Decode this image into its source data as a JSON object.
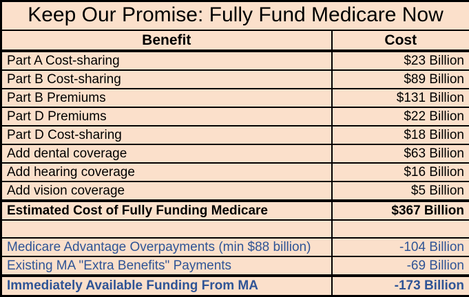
{
  "colors": {
    "table_background": "#fbe0cb",
    "border": "#000000",
    "black_text": "#000000",
    "blue_text": "#2f5496"
  },
  "chart_data": {
    "type": "table",
    "title": "Keep Our Promise: Fully Fund Medicare Now",
    "columns": {
      "benefit": "Benefit",
      "cost": "Cost"
    },
    "benefit_rows": [
      {
        "benefit": "Part A Cost-sharing",
        "cost": "$23 Billion"
      },
      {
        "benefit": "Part B Cost-sharing",
        "cost": "$89 Billion"
      },
      {
        "benefit": "Part B Premiums",
        "cost": "$131 Billion"
      },
      {
        "benefit": "Part D Premiums",
        "cost": "$22 Billion"
      },
      {
        "benefit": "Part D Cost-sharing",
        "cost": "$18 Billion"
      },
      {
        "benefit": "Add dental coverage",
        "cost": "$63 Billion"
      },
      {
        "benefit": "Add hearing coverage",
        "cost": "$16 Billion"
      },
      {
        "benefit": "Add vision coverage",
        "cost": "$5 Billion"
      }
    ],
    "summary_row": {
      "benefit": "Estimated Cost of Fully Funding Medicare",
      "cost": "$367 Billion"
    },
    "offset_rows": [
      {
        "benefit": "Medicare Advantage Overpayments (min $88 billion)",
        "cost": "-104 Billion"
      },
      {
        "benefit": "Existing MA \"Extra Benefits\" Payments",
        "cost": "-69 Billion"
      }
    ],
    "total_row": {
      "benefit": "Immediately Available Funding From MA",
      "cost": "-173 Billion"
    }
  }
}
